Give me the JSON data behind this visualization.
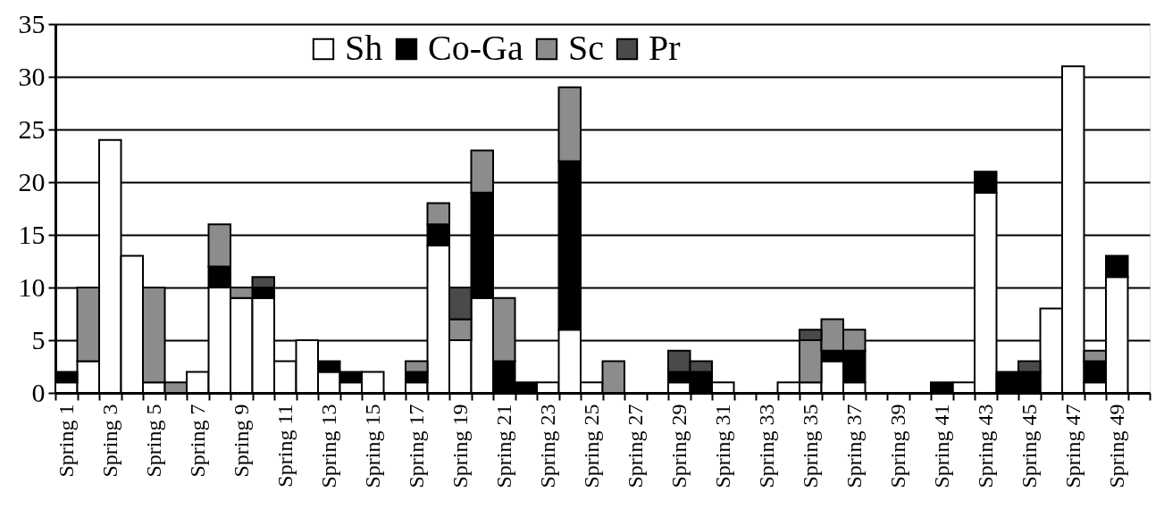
{
  "chart_data": {
    "type": "bar",
    "stacked": true,
    "categories": [
      "Spring 1",
      null,
      "Spring 3",
      null,
      "Spring 5",
      null,
      "Spring 7",
      null,
      "Spring 9",
      null,
      "Spring 11",
      null,
      "Spring 13",
      null,
      "Spring 15",
      null,
      "Spring 17",
      null,
      "Spring 19",
      null,
      "Spring 21",
      null,
      "Spring 23",
      null,
      "Spring 25",
      null,
      "Spring 27",
      null,
      "Spring 29",
      null,
      "Spring 31",
      null,
      "Spring 33",
      null,
      "Spring 35",
      null,
      "Spring 37",
      null,
      "Spring 39",
      null,
      "Spring 41",
      null,
      "Spring 43",
      null,
      "Spring 45",
      null,
      "Spring 47",
      null,
      "Spring 49",
      null
    ],
    "series": [
      {
        "name": "Sh",
        "color": "#ffffff",
        "values": [
          1,
          3,
          24,
          13,
          1,
          0,
          2,
          10,
          9,
          9,
          3,
          5,
          2,
          1,
          2,
          0,
          1,
          14,
          5,
          9,
          0,
          0,
          1,
          6,
          1,
          0,
          0,
          0,
          1,
          0,
          1,
          0,
          0,
          1,
          1,
          3,
          1,
          0,
          0,
          0,
          0,
          1,
          19,
          0,
          0,
          8,
          31,
          1,
          11,
          0
        ]
      },
      {
        "name": "Co-Ga",
        "color": "#000000",
        "values": [
          1,
          0,
          0,
          0,
          0,
          0,
          0,
          2,
          0,
          1,
          0,
          0,
          1,
          1,
          0,
          0,
          1,
          2,
          0,
          10,
          3,
          1,
          0,
          16,
          0,
          0,
          0,
          0,
          1,
          2,
          0,
          0,
          0,
          0,
          0,
          1,
          3,
          0,
          0,
          0,
          1,
          0,
          2,
          2,
          2,
          0,
          0,
          2,
          2,
          0
        ]
      },
      {
        "name": "Sc",
        "color": "#8c8c8c",
        "values": [
          0,
          7,
          0,
          0,
          9,
          1,
          0,
          4,
          1,
          0,
          0,
          0,
          0,
          0,
          0,
          0,
          1,
          2,
          2,
          4,
          6,
          0,
          0,
          7,
          0,
          3,
          0,
          0,
          0,
          0,
          0,
          0,
          0,
          0,
          4,
          3,
          2,
          0,
          0,
          0,
          0,
          0,
          0,
          0,
          0,
          0,
          0,
          1,
          0,
          0
        ]
      },
      {
        "name": "Pr",
        "color": "#4a4a4a",
        "values": [
          0,
          0,
          0,
          0,
          0,
          0,
          0,
          0,
          0,
          1,
          0,
          0,
          0,
          0,
          0,
          0,
          0,
          0,
          3,
          0,
          0,
          0,
          0,
          0,
          0,
          0,
          0,
          0,
          2,
          1,
          0,
          0,
          0,
          0,
          1,
          0,
          0,
          0,
          0,
          0,
          0,
          0,
          0,
          0,
          1,
          0,
          0,
          0,
          0,
          0
        ]
      }
    ],
    "ylim": [
      0,
      35
    ],
    "yticks": [
      0,
      5,
      10,
      15,
      20,
      25,
      30,
      35
    ],
    "grid": "y",
    "legend": "top"
  }
}
